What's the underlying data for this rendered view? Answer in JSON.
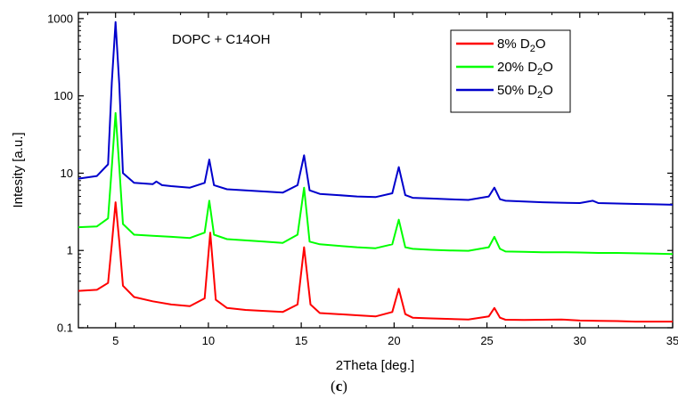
{
  "chart_data": {
    "type": "line",
    "title": "",
    "annotation": "DOPC + C14OH",
    "xlabel": "2Theta [deg.]",
    "ylabel": "Intesity [a.u.]",
    "xlim": [
      3,
      35
    ],
    "ylim": [
      0.1,
      1200
    ],
    "yscale": "log",
    "x_ticks": [
      5,
      10,
      15,
      20,
      25,
      30,
      35
    ],
    "x_tick_labels": [
      "5",
      "10",
      "15",
      "20",
      "25",
      "30",
      "35"
    ],
    "y_ticks": [
      0.1,
      1,
      10,
      100,
      1000
    ],
    "y_tick_labels": [
      "0.1",
      "1",
      "10",
      "100",
      "1000"
    ],
    "grid": false,
    "legend_position": "top-right",
    "series": [
      {
        "name": "8% D₂O",
        "name_parts": {
          "prefix": "8% D",
          "sub": "2",
          "suffix": "O"
        },
        "color": "#ff0000",
        "x": [
          3,
          4,
          4.6,
          4.8,
          5.0,
          5.2,
          5.4,
          6,
          7,
          8,
          9,
          9.8,
          10.1,
          10.4,
          11,
          12,
          13,
          14,
          14.8,
          15.15,
          15.5,
          16,
          17,
          18,
          19,
          19.9,
          20.25,
          20.6,
          21,
          22,
          23,
          24,
          25.1,
          25.4,
          25.7,
          26,
          27,
          28,
          29,
          30,
          31,
          32,
          33,
          34,
          35
        ],
        "y": [
          0.3,
          0.31,
          0.38,
          1.2,
          4.2,
          1.3,
          0.35,
          0.25,
          0.22,
          0.2,
          0.19,
          0.24,
          1.7,
          0.23,
          0.18,
          0.17,
          0.165,
          0.16,
          0.2,
          1.1,
          0.2,
          0.155,
          0.15,
          0.145,
          0.14,
          0.16,
          0.32,
          0.15,
          0.135,
          0.132,
          0.13,
          0.128,
          0.14,
          0.18,
          0.135,
          0.127,
          0.126,
          0.127,
          0.128,
          0.124,
          0.123,
          0.122,
          0.12,
          0.12,
          0.12
        ]
      },
      {
        "name": "20% D₂O",
        "name_parts": {
          "prefix": "20% D",
          "sub": "2",
          "suffix": "O"
        },
        "color": "#00ff00",
        "x": [
          3,
          4,
          4.6,
          4.8,
          5.0,
          5.2,
          5.4,
          6,
          7,
          8,
          9,
          9.8,
          10.05,
          10.3,
          11,
          12,
          13,
          14,
          14.8,
          15.15,
          15.45,
          16,
          17,
          18,
          19,
          19.9,
          20.25,
          20.6,
          21,
          22,
          23,
          24,
          25.1,
          25.4,
          25.7,
          26,
          27,
          28,
          29,
          30,
          31,
          32,
          33,
          34,
          35
        ],
        "y": [
          2,
          2.05,
          2.6,
          12,
          60,
          12,
          2.2,
          1.6,
          1.55,
          1.5,
          1.45,
          1.7,
          4.4,
          1.6,
          1.4,
          1.35,
          1.3,
          1.25,
          1.6,
          6.5,
          1.3,
          1.2,
          1.15,
          1.1,
          1.07,
          1.2,
          2.5,
          1.1,
          1.05,
          1.02,
          1.0,
          0.99,
          1.1,
          1.5,
          1.05,
          0.97,
          0.96,
          0.95,
          0.95,
          0.94,
          0.93,
          0.93,
          0.92,
          0.91,
          0.9
        ]
      },
      {
        "name": "50% D₂O",
        "name_parts": {
          "prefix": "50% D",
          "sub": "2",
          "suffix": "O"
        },
        "color": "#0000cc",
        "x": [
          3,
          4,
          4.6,
          4.8,
          5.0,
          5.2,
          5.4,
          6,
          7,
          7.2,
          7.5,
          8,
          9,
          9.8,
          10.05,
          10.3,
          11,
          12,
          13,
          14,
          14.8,
          15.15,
          15.45,
          16,
          17,
          18,
          19,
          19.9,
          20.25,
          20.6,
          21,
          22,
          23,
          24,
          25.1,
          25.4,
          25.7,
          26,
          27,
          28,
          29,
          30,
          30.7,
          31,
          32,
          33,
          34,
          35
        ],
        "y": [
          8.5,
          9.2,
          13,
          150,
          900,
          140,
          10,
          7.5,
          7.2,
          7.8,
          7.0,
          6.8,
          6.5,
          7.5,
          15,
          7,
          6.2,
          6.0,
          5.8,
          5.6,
          7,
          17,
          6,
          5.4,
          5.2,
          5.0,
          4.9,
          5.5,
          12,
          5.2,
          4.8,
          4.7,
          4.6,
          4.5,
          5,
          6.5,
          4.6,
          4.4,
          4.3,
          4.2,
          4.15,
          4.1,
          4.4,
          4.1,
          4.05,
          4.0,
          3.95,
          3.9
        ]
      }
    ]
  },
  "caption": {
    "label": "c",
    "open": "(",
    "close": ")"
  }
}
